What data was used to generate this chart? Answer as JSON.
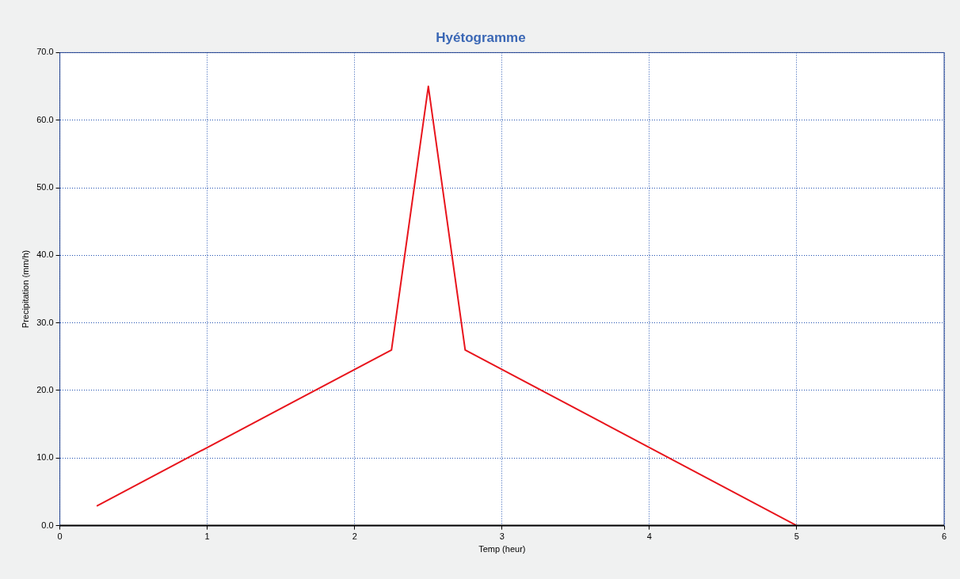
{
  "chart_data": {
    "type": "line",
    "title": "Hyétogramme",
    "xlabel": "Temp (heur)",
    "ylabel": "Precipitation (mm/h)",
    "x": [
      0.25,
      2.25,
      2.5,
      2.75,
      5
    ],
    "series": [
      {
        "color": "#e8141c",
        "values": [
          2.9,
          26,
          65,
          26,
          0
        ]
      }
    ],
    "xlim": [
      0,
      6
    ],
    "xticks": [
      0,
      1,
      2,
      3,
      4,
      5,
      6
    ],
    "ylim": [
      0,
      70
    ],
    "yticks": [
      {
        "value": 0,
        "label": "0.0"
      },
      {
        "value": 10,
        "label": "10.0"
      },
      {
        "value": 20,
        "label": "20.0"
      },
      {
        "value": 30,
        "label": "30.0"
      },
      {
        "value": 40,
        "label": "40.0"
      },
      {
        "value": 50,
        "label": "50.0"
      },
      {
        "value": 60,
        "label": "60.0"
      },
      {
        "value": 70,
        "label": "70.0"
      }
    ],
    "grid": true,
    "legend": false,
    "marker": "none",
    "line_style": "solid"
  }
}
